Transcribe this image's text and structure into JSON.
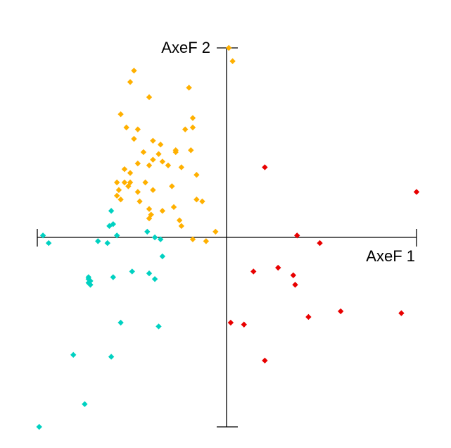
{
  "chart_data": {
    "type": "scatter",
    "title": "",
    "xlabel": "AxeF 1",
    "ylabel": "AxeF 2",
    "xlim": [
      -1,
      1
    ],
    "ylim": [
      -1,
      1
    ],
    "grid": false,
    "legend": "none",
    "series": [
      {
        "color": "#FFB000",
        "marker": "diamond",
        "points": [
          [
            0.01,
            1.0
          ],
          [
            0.03,
            0.93
          ],
          [
            -0.49,
            0.88
          ],
          [
            -0.51,
            0.82
          ],
          [
            -0.41,
            0.74
          ],
          [
            -0.2,
            0.79
          ],
          [
            -0.56,
            0.65
          ],
          [
            -0.53,
            0.58
          ],
          [
            -0.47,
            0.57
          ],
          [
            -0.18,
            0.63
          ],
          [
            -0.18,
            0.58
          ],
          [
            -0.22,
            0.57
          ],
          [
            -0.49,
            0.52
          ],
          [
            -0.39,
            0.51
          ],
          [
            -0.35,
            0.49
          ],
          [
            -0.27,
            0.46
          ],
          [
            -0.19,
            0.46
          ],
          [
            -0.44,
            0.45
          ],
          [
            -0.36,
            0.44
          ],
          [
            -0.27,
            0.45
          ],
          [
            -0.39,
            0.41
          ],
          [
            -0.34,
            0.4
          ],
          [
            -0.47,
            0.39
          ],
          [
            -0.41,
            0.38
          ],
          [
            -0.54,
            0.36
          ],
          [
            -0.51,
            0.34
          ],
          [
            -0.31,
            0.38
          ],
          [
            -0.24,
            0.37
          ],
          [
            -0.16,
            0.33
          ],
          [
            -0.58,
            0.29
          ],
          [
            -0.54,
            0.29
          ],
          [
            -0.51,
            0.29
          ],
          [
            -0.52,
            0.27
          ],
          [
            -0.43,
            0.29
          ],
          [
            -0.57,
            0.25
          ],
          [
            -0.39,
            0.25
          ],
          [
            -0.29,
            0.27
          ],
          [
            -0.47,
            0.24
          ],
          [
            -0.58,
            0.22
          ],
          [
            -0.56,
            0.2
          ],
          [
            -0.46,
            0.19
          ],
          [
            -0.16,
            0.2
          ],
          [
            -0.13,
            0.19
          ],
          [
            -0.41,
            0.15
          ],
          [
            -0.34,
            0.14
          ],
          [
            -0.28,
            0.16
          ],
          [
            -0.4,
            0.12
          ],
          [
            -0.41,
            0.1
          ],
          [
            -0.25,
            0.09
          ],
          [
            -0.24,
            0.06
          ],
          [
            -0.06,
            0.03
          ],
          [
            -0.18,
            -0.01
          ],
          [
            -0.11,
            -0.02
          ]
        ]
      },
      {
        "color": "#00D1C1",
        "marker": "diamond",
        "points": [
          [
            -0.61,
            0.14
          ],
          [
            -0.62,
            0.06
          ],
          [
            -0.6,
            0.07
          ],
          [
            -0.97,
            0.01
          ],
          [
            -0.58,
            0.01
          ],
          [
            -0.68,
            -0.02
          ],
          [
            -0.63,
            -0.03
          ],
          [
            -0.42,
            0.03
          ],
          [
            -0.38,
            0.0
          ],
          [
            -0.35,
            -0.01
          ],
          [
            -0.94,
            -0.03
          ],
          [
            -0.34,
            -0.1
          ],
          [
            -0.73,
            -0.21
          ],
          [
            -0.73,
            -0.22
          ],
          [
            -0.72,
            -0.23
          ],
          [
            -0.73,
            -0.24
          ],
          [
            -0.72,
            -0.25
          ],
          [
            -0.6,
            -0.21
          ],
          [
            -0.41,
            -0.19
          ],
          [
            -0.5,
            -0.18
          ],
          [
            -0.38,
            -0.22
          ],
          [
            -0.56,
            -0.45
          ],
          [
            -0.36,
            -0.47
          ],
          [
            -0.81,
            -0.62
          ],
          [
            -0.61,
            -0.63
          ],
          [
            -0.75,
            -0.88
          ],
          [
            -0.99,
            -1.0
          ]
        ]
      },
      {
        "color": "#E80000",
        "marker": "diamond",
        "points": [
          [
            0.2,
            0.37
          ],
          [
            1.0,
            0.24
          ],
          [
            0.37,
            0.01
          ],
          [
            0.49,
            -0.03
          ],
          [
            0.14,
            -0.18
          ],
          [
            0.27,
            -0.16
          ],
          [
            0.35,
            -0.2
          ],
          [
            0.36,
            -0.25
          ],
          [
            0.6,
            -0.39
          ],
          [
            0.92,
            -0.4
          ],
          [
            0.43,
            -0.42
          ],
          [
            0.02,
            -0.45
          ],
          [
            0.09,
            -0.46
          ],
          [
            0.2,
            -0.65
          ]
        ]
      }
    ]
  }
}
